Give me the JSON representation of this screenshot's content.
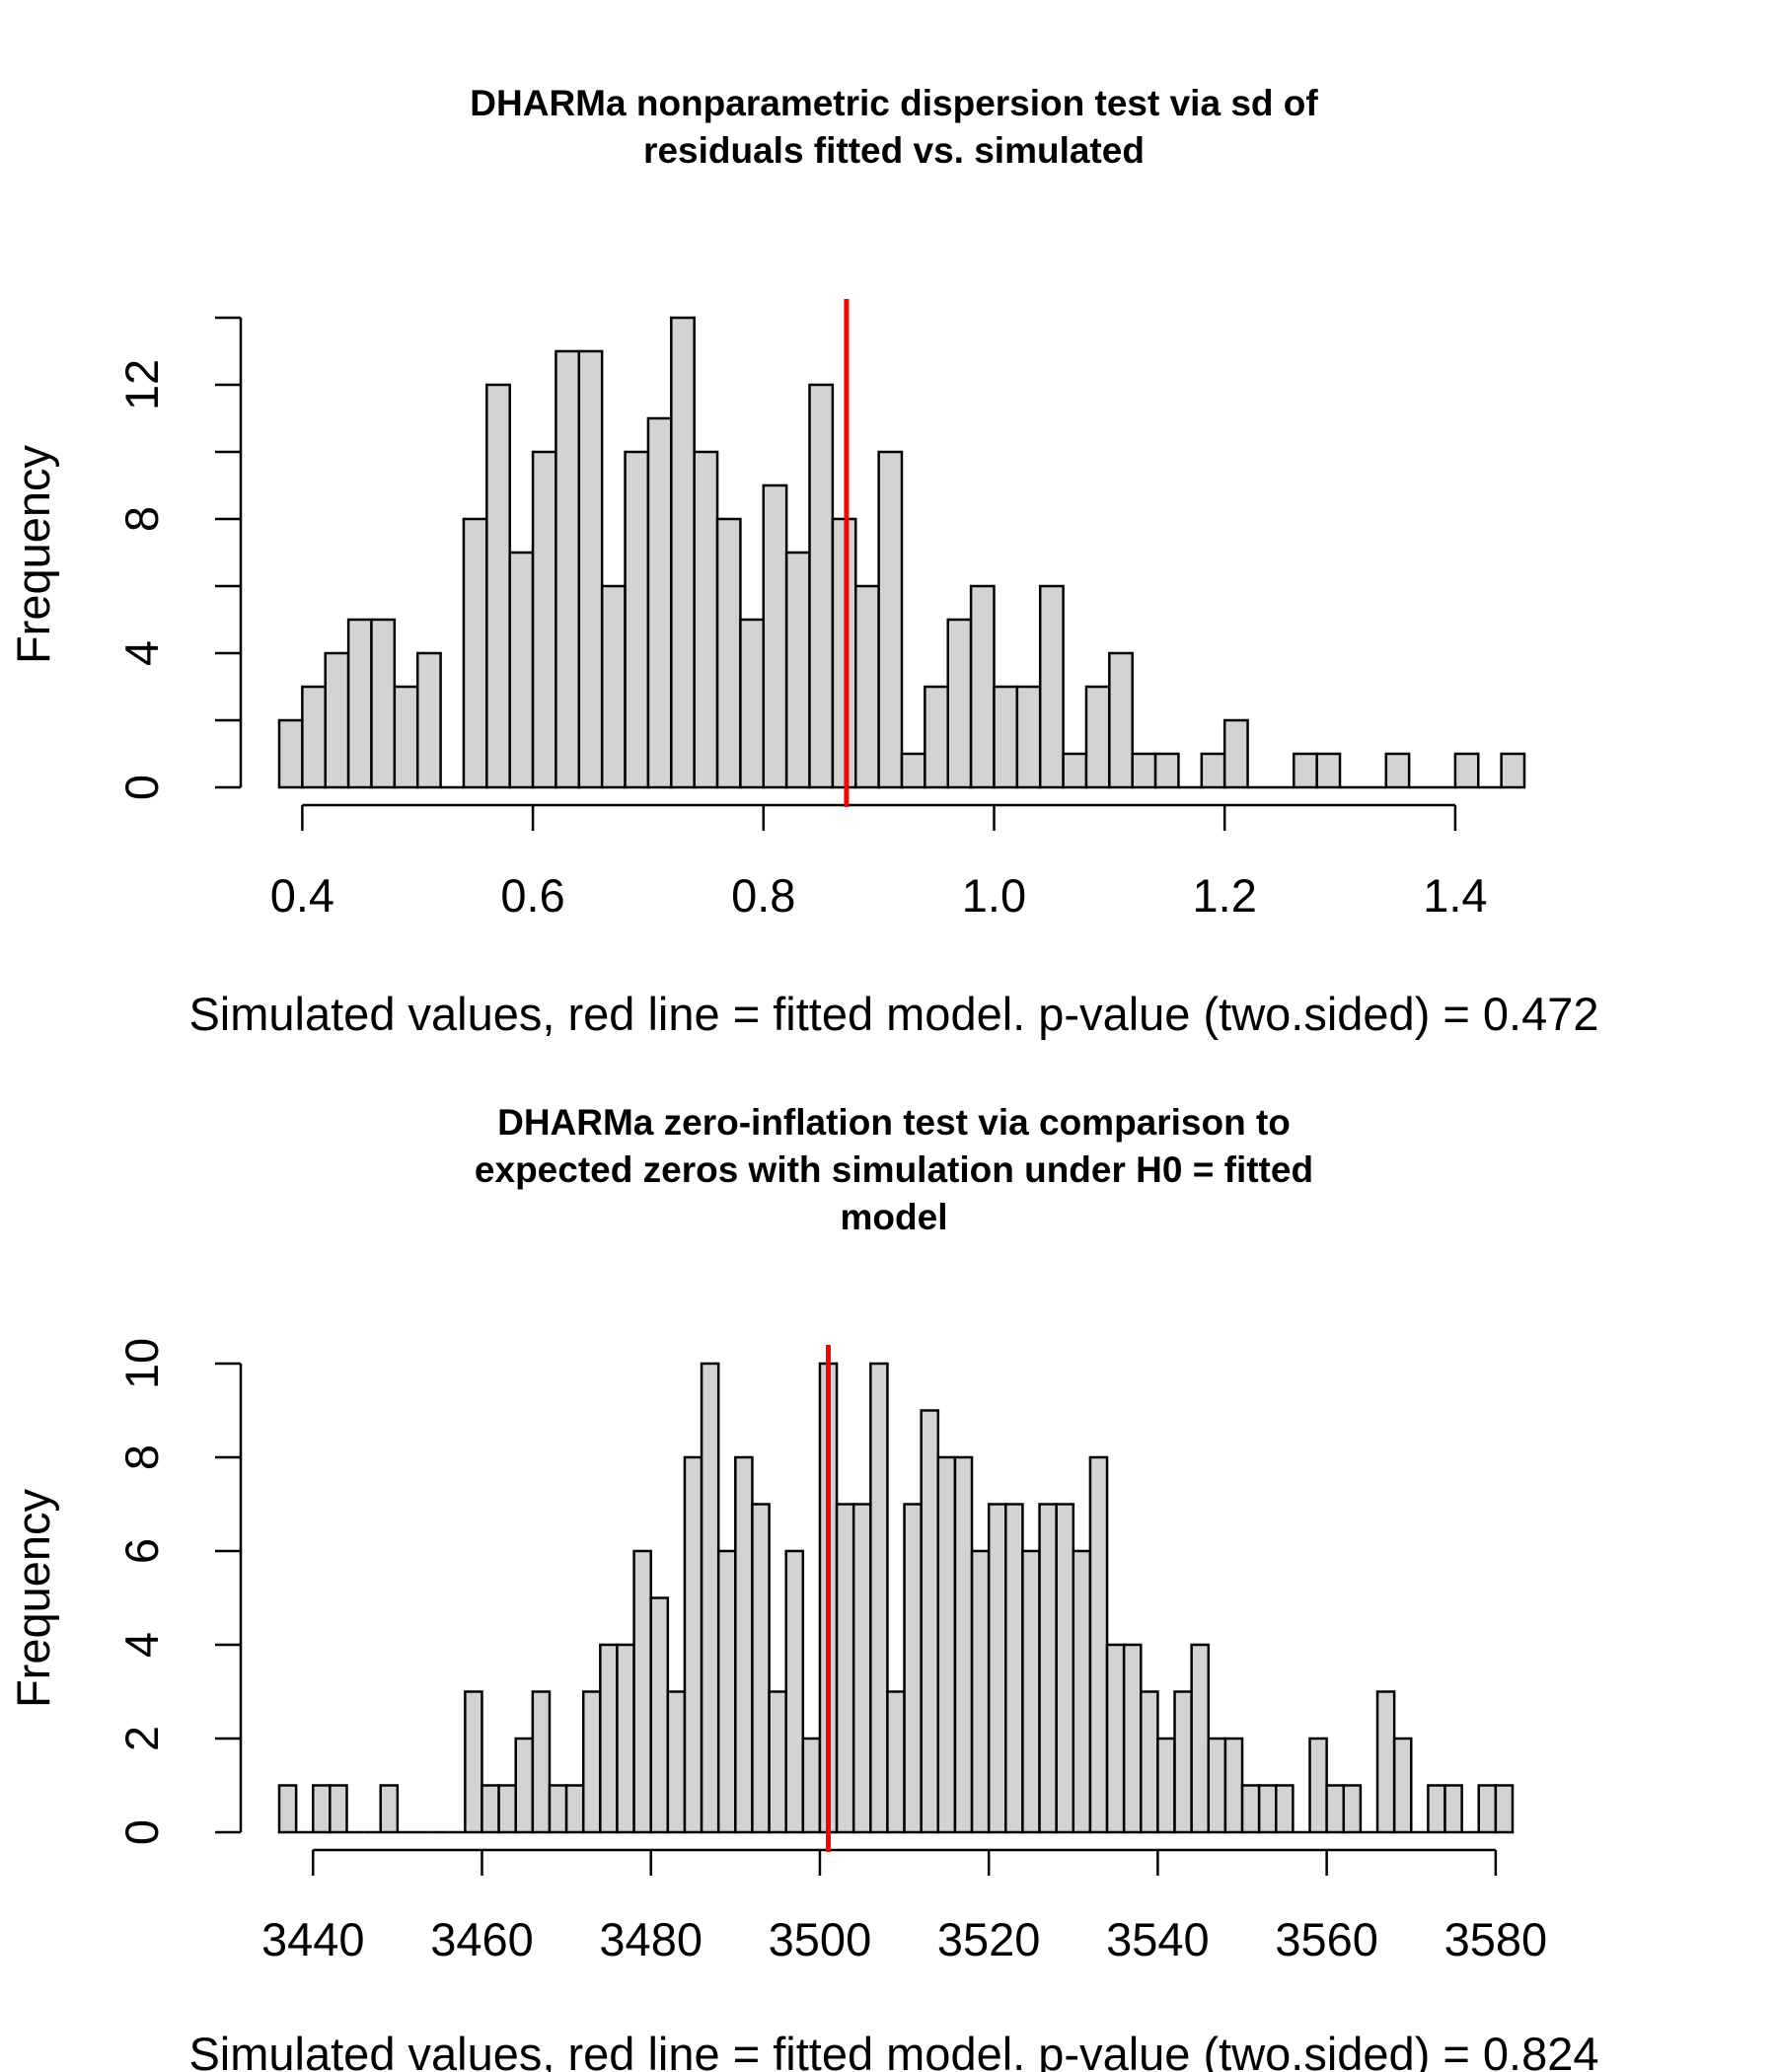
{
  "chart_data": [
    {
      "type": "bar",
      "title_lines": [
        "DHARMa nonparametric dispersion test via sd of",
        "residuals fitted vs. simulated"
      ],
      "xlabel": "Simulated values, red line = fitted model. p-value (two.sided) = 0.472",
      "ylabel": "Frequency",
      "bin_start": 0.38,
      "bin_width": 0.02,
      "values": [
        2,
        3,
        4,
        5,
        5,
        3,
        4,
        0,
        8,
        12,
        7,
        10,
        13,
        13,
        6,
        10,
        11,
        14,
        10,
        8,
        5,
        9,
        7,
        12,
        8,
        6,
        10,
        1,
        3,
        5,
        6,
        3,
        3,
        6,
        1,
        3,
        4,
        1,
        1,
        0,
        1,
        2,
        0,
        0,
        1,
        1,
        0,
        0,
        1,
        0,
        0,
        1,
        0,
        1
      ],
      "fitted_value": 0.872,
      "xlim": [
        0.38,
        1.44
      ],
      "ylim": [
        0,
        14
      ],
      "xticks": [
        0.4,
        0.6,
        0.8,
        1.0,
        1.2,
        1.4
      ],
      "xtick_labels": [
        "0.4",
        "0.6",
        "0.8",
        "1.0",
        "1.2",
        "1.4"
      ],
      "yticks": [
        0,
        2,
        4,
        6,
        8,
        10,
        12,
        14
      ],
      "ytick_labels": [
        "0",
        "4",
        "8",
        "12"
      ],
      "ytick_label_values": [
        0,
        4,
        8,
        12
      ],
      "line_color": "#ff0000",
      "bar_color": "#d3d3d3"
    },
    {
      "type": "bar",
      "title_lines": [
        "DHARMa zero-inflation test via comparison to",
        "expected zeros with simulation under H0 = fitted",
        "model"
      ],
      "xlabel": "Simulated values, red line = fitted model. p-value (two.sided) = 0.824",
      "ylabel": "Frequency",
      "bin_start": 3436,
      "bin_width": 2,
      "values": [
        1,
        0,
        1,
        1,
        0,
        0,
        1,
        0,
        0,
        0,
        0,
        3,
        1,
        1,
        2,
        3,
        1,
        1,
        3,
        4,
        4,
        6,
        5,
        3,
        8,
        10,
        6,
        8,
        7,
        3,
        6,
        2,
        10,
        7,
        7,
        10,
        3,
        7,
        9,
        8,
        8,
        6,
        7,
        7,
        6,
        7,
        7,
        6,
        8,
        4,
        4,
        3,
        2,
        3,
        4,
        2,
        2,
        1,
        1,
        1,
        0,
        2,
        1,
        1,
        0,
        3,
        2,
        0,
        1,
        1,
        0,
        1,
        1
      ],
      "fitted_value": 3501,
      "xlim": [
        3436,
        3578
      ],
      "ylim": [
        0,
        10
      ],
      "xticks": [
        3440,
        3460,
        3480,
        3500,
        3520,
        3540,
        3560,
        3580
      ],
      "xtick_labels": [
        "3440",
        "3460",
        "3480",
        "3500",
        "3520",
        "3540",
        "3560",
        "3580"
      ],
      "yticks": [
        0,
        2,
        4,
        6,
        8,
        10
      ],
      "ytick_labels": [
        "0",
        "2",
        "4",
        "6",
        "8",
        "10"
      ],
      "ytick_label_values": [
        0,
        2,
        4,
        6,
        8,
        10
      ],
      "line_color": "#ff0000",
      "bar_color": "#d3d3d3"
    }
  ]
}
